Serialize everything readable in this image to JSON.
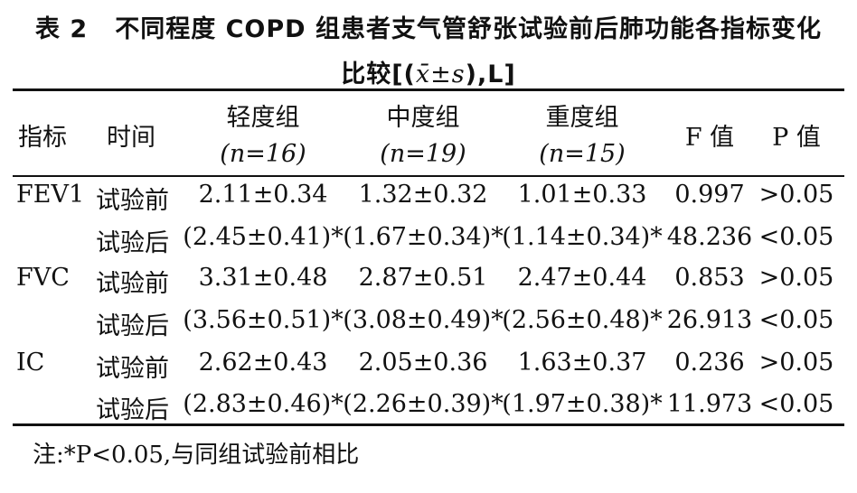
{
  "title": {
    "table_no": "表 2",
    "line1": "不同程度 COPD 组患者支气管舒张试验前后肺功能各指标变化",
    "line2_prefix": "比较[(",
    "line2_stat": "x̄±s",
    "line2_suffix": "),L]"
  },
  "header": {
    "indicator": "指标",
    "time": "时间",
    "groups": [
      {
        "name": "轻度组",
        "n": "(n=16)"
      },
      {
        "name": "中度组",
        "n": "(n=19)"
      },
      {
        "name": "重度组",
        "n": "(n=15)"
      }
    ],
    "f_value": "F 值",
    "p_value": "P 值"
  },
  "rows": [
    {
      "indicator": "FEV1",
      "time": "试验前",
      "mild": "2.11±0.34",
      "moderate": "1.32±0.32",
      "severe": "1.01±0.33",
      "f": "0.997",
      "p": ">0.05"
    },
    {
      "indicator": "",
      "time": "试验后",
      "mild": "(2.45±0.41)*",
      "moderate": "(1.67±0.34)*",
      "severe": "(1.14±0.34)*",
      "f": "48.236",
      "p": "<0.05"
    },
    {
      "indicator": "FVC",
      "time": "试验前",
      "mild": "3.31±0.48",
      "moderate": "2.87±0.51",
      "severe": "2.47±0.44",
      "f": "0.853",
      "p": ">0.05"
    },
    {
      "indicator": "",
      "time": "试验后",
      "mild": "(3.56±0.51)*",
      "moderate": "(3.08±0.49)*",
      "severe": "(2.56±0.48)*",
      "f": "26.913",
      "p": "<0.05"
    },
    {
      "indicator": "IC",
      "time": "试验前",
      "mild": "2.62±0.43",
      "moderate": "2.05±0.36",
      "severe": "1.63±0.37",
      "f": "0.236",
      "p": ">0.05"
    },
    {
      "indicator": "",
      "time": "试验后",
      "mild": "(2.83±0.46)*",
      "moderate": "(2.26±0.39)*",
      "severe": "(1.97±0.38)*",
      "f": "11.973",
      "p": "<0.05"
    }
  ],
  "note": "注:*P<0.05,与同组试验前相比"
}
